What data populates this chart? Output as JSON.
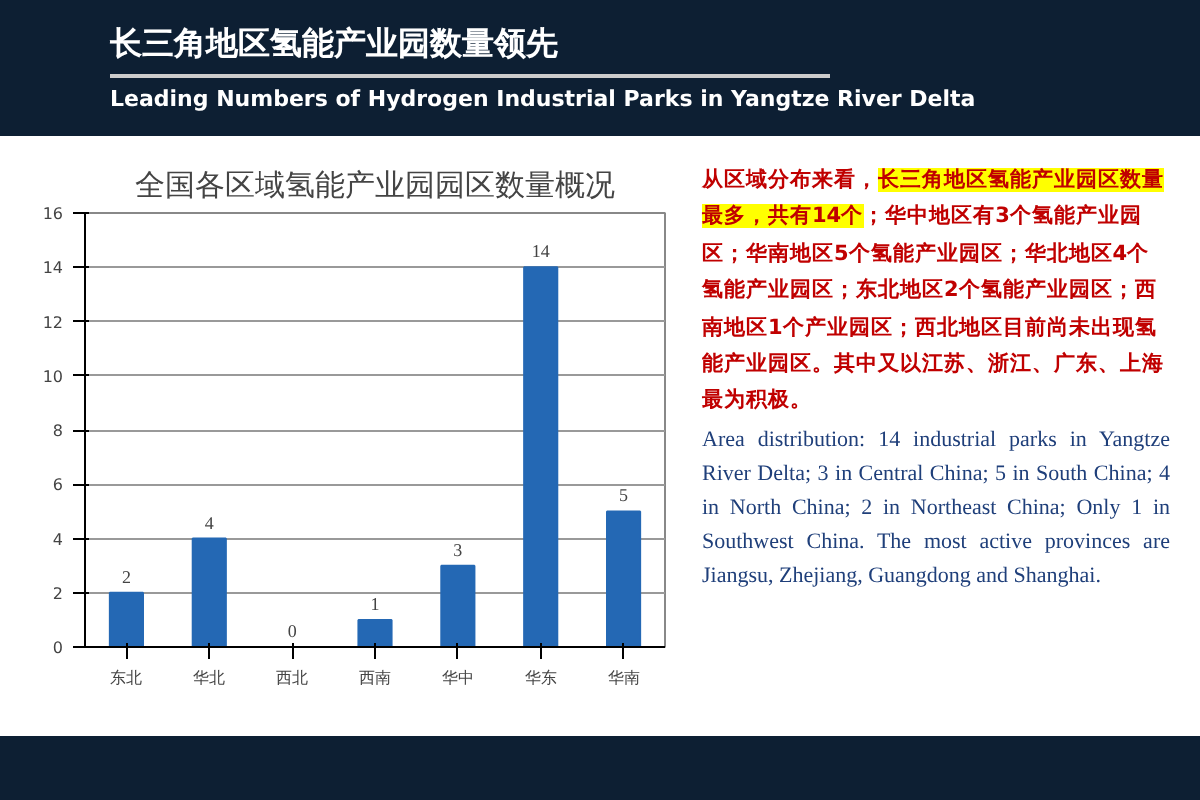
{
  "chart_data": {
    "type": "bar",
    "title": "长三角地区氢能产业园数量领先",
    "subtitle": "Leading Numbers of Hydrogen Industrial Parks in Yangtze River Delta",
    "annotations": [
      "全国各区域氢能产业园园区数量概况",
      "从区域分布来看，",
      "长三角地区氢能产业园区数量最多，共有14个",
      "；华中地区有3个氢能产业园区；华南地区5个氢能产业园区；华北地区4个氢能产业园区；东北地区2个氢能产业园区；西南地区1个产业园区；西北地区目前尚未出现氢能产业园区。其中又以江苏、浙江、广东、上海最为积极。",
      "Area distribution: 14 industrial parks in Yangtze River Delta; 3 in Central China; 5 in South China; 4 in North China; 2 in Northeast China; Only 1 in Southwest China. The most active provinces are Jiangsu, Zhejiang, Guangdong and Shanghai."
    ],
    "categories": [
      "东北",
      "华北",
      "西北",
      "西南",
      "华中",
      "华东",
      "华南"
    ],
    "values": [
      2,
      4,
      0,
      1,
      3,
      14,
      5
    ],
    "color": "#2468b4",
    "ylim": [
      0,
      16
    ],
    "yticks": [
      0,
      2,
      4,
      6,
      8,
      10,
      12,
      14,
      16
    ],
    "grid": "y",
    "data_labels": true
  }
}
